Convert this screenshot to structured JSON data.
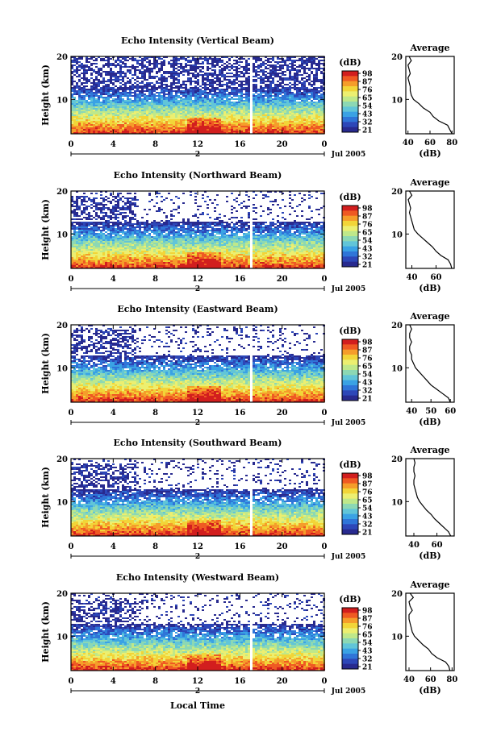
{
  "figure": {
    "xlabel": "Local Time",
    "ylabel": "Height (km)",
    "date_label": "Jul 2005",
    "day_marker": "2",
    "colorbar_title": "(dB)",
    "colorbar_ticks": [
      "98",
      "87",
      "76",
      "65",
      "54",
      "43",
      "32",
      "21"
    ],
    "colorbar_colors": [
      "#d21e1e",
      "#ef5a23",
      "#f59d2a",
      "#f2d538",
      "#ecef70",
      "#bfe88a",
      "#8cd8b4",
      "#61c5d8",
      "#3aa2e4",
      "#2f75d8",
      "#2d47b8",
      "#282a8f"
    ],
    "avg_title": "Average",
    "avg_xlabel": "(dB)"
  },
  "chart_data": [
    {
      "type": "heatmap",
      "title": "Echo Intensity (Vertical Beam)",
      "xlabel": "Local Time",
      "ylabel": "Height (km)",
      "xticks": [
        "0",
        "4",
        "8",
        "12",
        "16",
        "20",
        "0"
      ],
      "yticks": [
        "10",
        "20"
      ],
      "xlim": [
        0,
        24
      ],
      "ylim": [
        2,
        20
      ],
      "colorbar": {
        "label": "(dB)",
        "ticks": [
          98,
          87,
          76,
          65,
          54,
          43,
          32,
          21
        ]
      },
      "data_gap_hour": 17,
      "profile": {
        "title": "Average",
        "xlabel": "(dB)",
        "xticks": [
          "40",
          "60",
          "80"
        ],
        "xlim": [
          38,
          82
        ],
        "yticks": [
          "10",
          "20"
        ],
        "height_km": [
          2,
          3,
          4,
          5,
          6,
          7,
          8,
          9,
          10,
          11,
          12,
          13,
          14,
          15,
          16,
          17,
          18,
          19,
          20
        ],
        "values": [
          80,
          78,
          76,
          68,
          63,
          60,
          54,
          50,
          45,
          43,
          42,
          42,
          41,
          40,
          42,
          41,
          40,
          43,
          41
        ]
      }
    },
    {
      "type": "heatmap",
      "title": "Echo Intensity (Northward Beam)",
      "xlabel": "Local Time",
      "ylabel": "Height (km)",
      "xticks": [
        "0",
        "4",
        "8",
        "12",
        "16",
        "20",
        "0"
      ],
      "yticks": [
        "10",
        "20"
      ],
      "xlim": [
        0,
        24
      ],
      "ylim": [
        2,
        20
      ],
      "colorbar": {
        "label": "(dB)",
        "ticks": [
          98,
          87,
          76,
          65,
          54,
          43,
          32,
          21
        ]
      },
      "data_gap_hour": 17,
      "profile": {
        "title": "Average",
        "xlabel": "(dB)",
        "xticks": [
          "40",
          "60"
        ],
        "xlim": [
          35,
          75
        ],
        "yticks": [
          "10",
          "20"
        ],
        "height_km": [
          2,
          3,
          4,
          5,
          6,
          7,
          8,
          9,
          10,
          11,
          12,
          13,
          14,
          15,
          16,
          17,
          18,
          19,
          20
        ],
        "values": [
          73,
          72,
          70,
          64,
          60,
          57,
          53,
          49,
          45,
          42,
          41,
          40,
          39,
          38,
          39,
          38,
          37,
          40,
          38
        ]
      }
    },
    {
      "type": "heatmap",
      "title": "Echo Intensity (Eastward Beam)",
      "xlabel": "Local Time",
      "ylabel": "Height (km)",
      "xticks": [
        "0",
        "4",
        "8",
        "12",
        "16",
        "20",
        "0"
      ],
      "yticks": [
        "10",
        "20"
      ],
      "xlim": [
        0,
        24
      ],
      "ylim": [
        2,
        20
      ],
      "colorbar": {
        "label": "(dB)",
        "ticks": [
          98,
          87,
          76,
          65,
          54,
          43,
          32,
          21
        ]
      },
      "data_gap_hour": 17,
      "profile": {
        "title": "Average",
        "xlabel": "(dB)",
        "xticks": [
          "40",
          "50",
          "60"
        ],
        "xlim": [
          37,
          62
        ],
        "yticks": [
          "10",
          "20"
        ],
        "height_km": [
          2,
          3,
          4,
          5,
          6,
          7,
          8,
          9,
          10,
          11,
          12,
          13,
          14,
          15,
          16,
          17,
          18,
          19,
          20
        ],
        "values": [
          60,
          59,
          56,
          53,
          50,
          48,
          46,
          44,
          42,
          41,
          40,
          40,
          39,
          39,
          40,
          39,
          39,
          40,
          39
        ]
      }
    },
    {
      "type": "heatmap",
      "title": "Echo Intensity (Southward Beam)",
      "xlabel": "Local Time",
      "ylabel": "Height (km)",
      "xticks": [
        "0",
        "4",
        "8",
        "12",
        "16",
        "20",
        "0"
      ],
      "yticks": [
        "10",
        "20"
      ],
      "xlim": [
        0,
        24
      ],
      "ylim": [
        2,
        20
      ],
      "colorbar": {
        "label": "(dB)",
        "ticks": [
          98,
          87,
          76,
          65,
          54,
          43,
          32,
          21
        ]
      },
      "data_gap_hour": 17,
      "profile": {
        "title": "Average",
        "xlabel": "(dB)",
        "xticks": [
          "40",
          "60"
        ],
        "xlim": [
          33,
          75
        ],
        "yticks": [
          "10",
          "20"
        ],
        "height_km": [
          2,
          3,
          4,
          5,
          6,
          7,
          8,
          9,
          10,
          11,
          12,
          13,
          14,
          15,
          16,
          17,
          18,
          19,
          20
        ],
        "values": [
          72,
          70,
          66,
          62,
          58,
          55,
          51,
          48,
          45,
          43,
          42,
          41,
          40,
          40,
          41,
          40,
          40,
          41,
          40
        ]
      }
    },
    {
      "type": "heatmap",
      "title": "Echo Intensity (Westward Beam)",
      "xlabel": "Local Time",
      "ylabel": "Height (km)",
      "xticks": [
        "0",
        "4",
        "8",
        "12",
        "16",
        "20",
        "0"
      ],
      "yticks": [
        "10",
        "20"
      ],
      "xlim": [
        0,
        24
      ],
      "ylim": [
        2,
        20
      ],
      "colorbar": {
        "label": "(dB)",
        "ticks": [
          98,
          87,
          76,
          65,
          54,
          43,
          32,
          21
        ]
      },
      "data_gap_hour": 17,
      "profile": {
        "title": "Average",
        "xlabel": "(dB)",
        "xticks": [
          "40",
          "60",
          "80"
        ],
        "xlim": [
          37,
          82
        ],
        "yticks": [
          "10",
          "20"
        ],
        "height_km": [
          2,
          3,
          4,
          5,
          6,
          7,
          8,
          9,
          10,
          11,
          12,
          13,
          14,
          15,
          16,
          17,
          18,
          19,
          20
        ],
        "values": [
          78,
          77,
          74,
          66,
          61,
          58,
          53,
          49,
          45,
          43,
          42,
          41,
          40,
          40,
          43,
          41,
          40,
          44,
          41
        ]
      }
    }
  ]
}
